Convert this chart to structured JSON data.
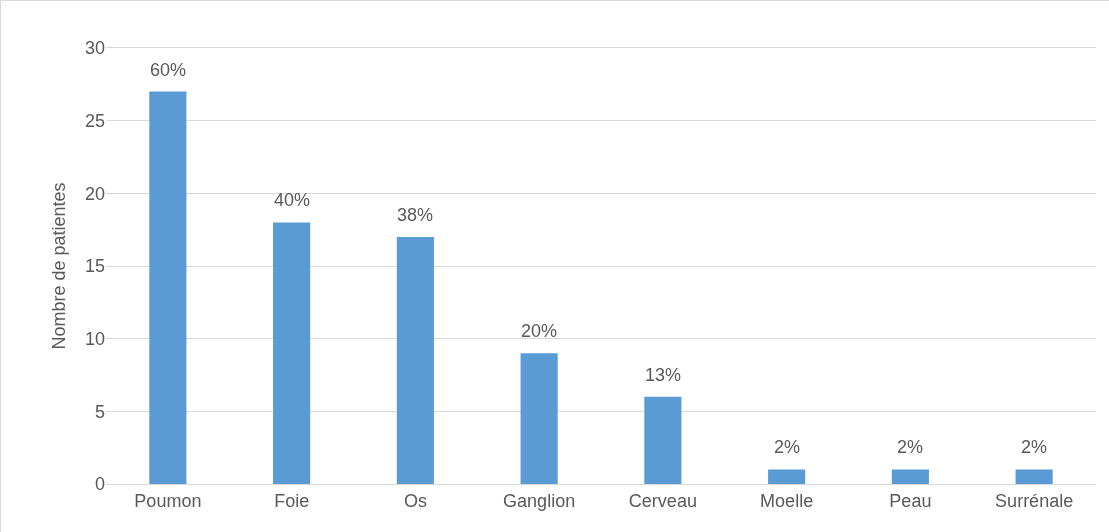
{
  "chart_data": {
    "type": "bar",
    "ylabel": "Nombre de patientes",
    "categories": [
      "Poumon",
      "Foie",
      "Os",
      "Ganglion",
      "Cerveau",
      "Moelle",
      "Peau",
      "Surrénale"
    ],
    "values": [
      27,
      18,
      17,
      9,
      6,
      1,
      1,
      1
    ],
    "annotations": [
      {
        "text": "60%",
        "x": "Poumon",
        "y": 27
      },
      {
        "text": "40%",
        "x": "Foie",
        "y": 18
      },
      {
        "text": "38%",
        "x": "Os",
        "y": 17
      },
      {
        "text": "20%",
        "x": "Ganglion",
        "y": 9
      },
      {
        "text": "13%",
        "x": "Cerveau",
        "y": 6
      },
      {
        "text": "2%",
        "x": "Moelle",
        "y": 1
      },
      {
        "text": "2%",
        "x": "Peau",
        "y": 1
      },
      {
        "text": "2%",
        "x": "Surrénale",
        "y": 1
      }
    ],
    "color": "#5b9bd5",
    "ylim": [
      0,
      30
    ],
    "yticks": [
      0,
      5,
      10,
      15,
      20,
      25,
      30
    ],
    "grid": "y",
    "legend": false
  }
}
